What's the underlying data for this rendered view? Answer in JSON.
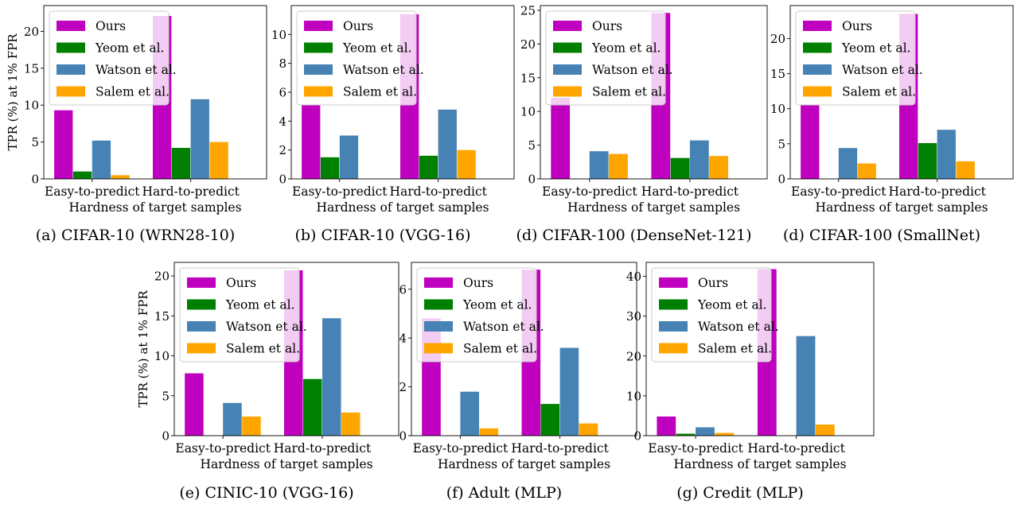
{
  "chart_data": [
    {
      "type": "bar",
      "caption": "(a) CIFAR-10 (WRN28-10)",
      "categories": [
        "Easy-to-predict",
        "Hard-to-predict"
      ],
      "series": [
        {
          "name": "Ours",
          "values": [
            9.3,
            22.1
          ]
        },
        {
          "name": "Yeom et al.",
          "values": [
            1.0,
            4.2
          ]
        },
        {
          "name": "Watson et al.",
          "values": [
            5.2,
            10.8
          ]
        },
        {
          "name": "Salem et al.",
          "values": [
            0.5,
            5.0
          ]
        }
      ],
      "xlabel": "Hardness of target samples",
      "ylabel": "TPR (%) at 1% FPR",
      "ylim": [
        0,
        23.5
      ],
      "yticks": [
        0,
        5,
        10,
        15,
        20
      ],
      "legend": "top-left"
    },
    {
      "type": "bar",
      "caption": "(b) CIFAR-10 (VGG-16)",
      "categories": [
        "Easy-to-predict",
        "Hard-to-predict"
      ],
      "series": [
        {
          "name": "Ours",
          "values": [
            5.1,
            11.4
          ]
        },
        {
          "name": "Yeom et al.",
          "values": [
            1.5,
            1.6
          ]
        },
        {
          "name": "Watson et al.",
          "values": [
            3.0,
            4.8
          ]
        },
        {
          "name": "Salem et al.",
          "values": [
            0.0,
            2.0
          ]
        }
      ],
      "xlabel": "Hardness of target samples",
      "ylabel": "",
      "ylim": [
        0,
        12
      ],
      "yticks": [
        0,
        2,
        4,
        6,
        8,
        10
      ],
      "legend": "top-left"
    },
    {
      "type": "bar",
      "caption": "(d) CIFAR-100 (DenseNet-121)",
      "categories": [
        "Easy-to-predict",
        "Hard-to-predict"
      ],
      "series": [
        {
          "name": "Ours",
          "values": [
            12.0,
            24.6
          ]
        },
        {
          "name": "Yeom et al.",
          "values": [
            0.0,
            3.1
          ]
        },
        {
          "name": "Watson et al.",
          "values": [
            4.1,
            5.7
          ]
        },
        {
          "name": "Salem et al.",
          "values": [
            3.7,
            3.4
          ]
        }
      ],
      "xlabel": "Hardness of target samples",
      "ylabel": "",
      "ylim": [
        0,
        25.7
      ],
      "yticks": [
        0,
        5,
        10,
        15,
        20,
        25
      ],
      "legend": "top-left"
    },
    {
      "type": "bar",
      "caption": "(d) CIFAR-100 (SmallNet)",
      "categories": [
        "Easy-to-predict",
        "Hard-to-predict"
      ],
      "series": [
        {
          "name": "Ours",
          "values": [
            10.5,
            23.5
          ]
        },
        {
          "name": "Yeom et al.",
          "values": [
            0.0,
            5.1
          ]
        },
        {
          "name": "Watson et al.",
          "values": [
            4.4,
            7.0
          ]
        },
        {
          "name": "Salem et al.",
          "values": [
            2.2,
            2.5
          ]
        }
      ],
      "xlabel": "Hardness of target samples",
      "ylabel": "",
      "ylim": [
        0,
        24.7
      ],
      "yticks": [
        0,
        5,
        10,
        15,
        20
      ],
      "legend": "top-left"
    },
    {
      "type": "bar",
      "caption": "(e) CINIC-10 (VGG-16)",
      "categories": [
        "Easy-to-predict",
        "Hard-to-predict"
      ],
      "series": [
        {
          "name": "Ours",
          "values": [
            7.8,
            20.7
          ]
        },
        {
          "name": "Yeom et al.",
          "values": [
            0.0,
            7.1
          ]
        },
        {
          "name": "Watson et al.",
          "values": [
            4.1,
            14.7
          ]
        },
        {
          "name": "Salem et al.",
          "values": [
            2.4,
            2.9
          ]
        }
      ],
      "xlabel": "Hardness of target samples",
      "ylabel": "TPR (%) at 1% FPR",
      "ylim": [
        0,
        21.7
      ],
      "yticks": [
        0,
        5,
        10,
        15,
        20
      ],
      "legend": "top-left"
    },
    {
      "type": "bar",
      "caption": "(f) Adult (MLP)",
      "categories": [
        "Easy-to-predict",
        "Hard-to-predict"
      ],
      "series": [
        {
          "name": "Ours",
          "values": [
            4.8,
            6.8
          ]
        },
        {
          "name": "Yeom et al.",
          "values": [
            0.0,
            1.3
          ]
        },
        {
          "name": "Watson et al.",
          "values": [
            1.8,
            3.6
          ]
        },
        {
          "name": "Salem et al.",
          "values": [
            0.3,
            0.5
          ]
        }
      ],
      "xlabel": "Hardness of target samples",
      "ylabel": "",
      "ylim": [
        0,
        7.1
      ],
      "yticks": [
        0,
        2,
        4,
        6
      ],
      "legend": "top-left"
    },
    {
      "type": "bar",
      "caption": "(g) Credit (MLP)",
      "categories": [
        "Easy-to-predict",
        "Hard-to-predict"
      ],
      "series": [
        {
          "name": "Ours",
          "values": [
            4.8,
            41.8
          ]
        },
        {
          "name": "Yeom et al.",
          "values": [
            0.5,
            0.0
          ]
        },
        {
          "name": "Watson et al.",
          "values": [
            2.1,
            25.0
          ]
        },
        {
          "name": "Salem et al.",
          "values": [
            0.7,
            2.8
          ]
        }
      ],
      "xlabel": "Hardness of target samples",
      "ylabel": "",
      "ylim": [
        0,
        43.5
      ],
      "yticks": [
        0,
        10,
        20,
        30,
        40
      ],
      "legend": "top-left"
    }
  ],
  "colors": {
    "Ours": "#bf00bf",
    "Yeom et al.": "#008000",
    "Watson et al.": "#4682b4",
    "Salem et al.": "#ffa500"
  }
}
